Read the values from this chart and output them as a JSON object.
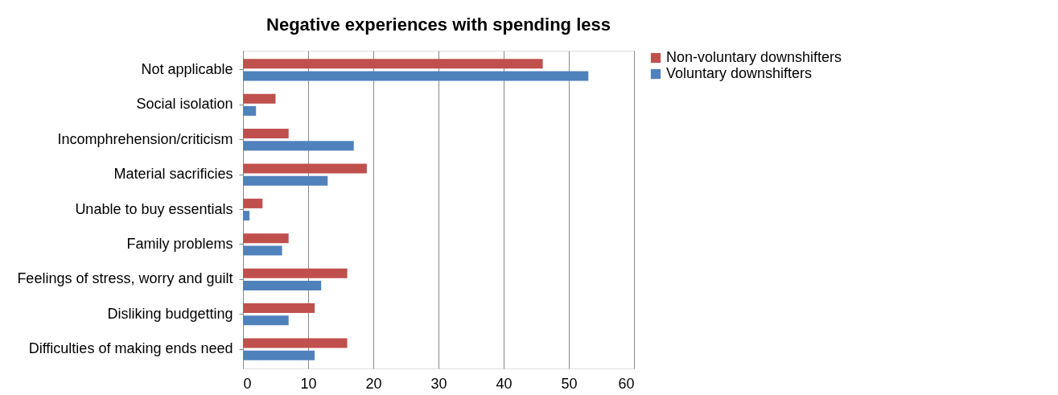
{
  "chart_data": {
    "type": "bar",
    "orientation": "horizontal",
    "title": "Negative experiences with spending less",
    "categories": [
      "Not applicable",
      "Social isolation",
      "Incomphrehension/criticism",
      "Material sacrificies",
      "Unable to buy essentials",
      "Family problems",
      "Feelings of stress, worry and guilt",
      "Disliking budgetting",
      "Difficulties of making ends need"
    ],
    "series": [
      {
        "name": "Non-voluntary downshifters",
        "color": "#c0504d",
        "values": [
          46,
          5,
          7,
          19,
          3,
          7,
          16,
          11,
          16
        ]
      },
      {
        "name": "Voluntary downshifters",
        "color": "#4f81bd",
        "values": [
          53,
          2,
          17,
          13,
          1,
          6,
          12,
          7,
          11
        ]
      }
    ],
    "xlim": [
      0,
      60
    ],
    "xticks": [
      0,
      10,
      20,
      30,
      40,
      50,
      60
    ],
    "grid": "x",
    "legend": "right"
  }
}
